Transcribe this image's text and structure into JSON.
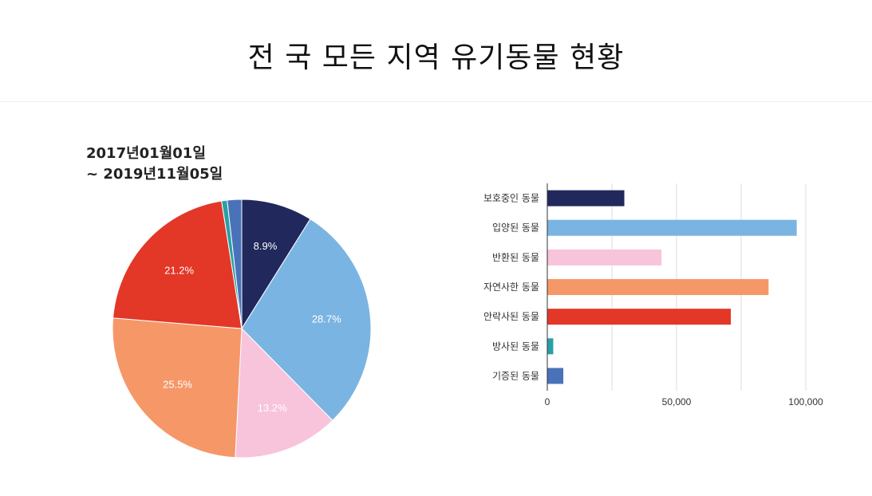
{
  "page": {
    "title": "전 국 모든 지역 유기동물 현황",
    "date_from": "2017년01월01일",
    "date_to": "~ 2019년11월05일"
  },
  "chart_data": [
    {
      "type": "pie",
      "labels": [
        "보호중인 동물",
        "입양된 동물",
        "반환된 동물",
        "자연사한 동물",
        "안락사된 동물",
        "방사된 동물",
        "기증된 동물"
      ],
      "values": [
        8.9,
        28.7,
        13.2,
        25.5,
        21.2,
        0.7,
        1.8
      ],
      "display_labels": [
        "8.9%",
        "28.7%",
        "13.2%",
        "25.5%",
        "21.2%",
        "",
        ""
      ],
      "colors": [
        "#20285c",
        "#7ab4e2",
        "#f7c4dc",
        "#f69768",
        "#e33728",
        "#2aa0a6",
        "#4a72b8"
      ]
    },
    {
      "type": "bar",
      "orientation": "horizontal",
      "categories": [
        "보호중인 동물",
        "입양된 동물",
        "반환된 동물",
        "자연사한 동물",
        "안락사된 동물",
        "방사된 동물",
        "기증된 동물"
      ],
      "values": [
        29800,
        96500,
        44200,
        85600,
        71000,
        2300,
        6200
      ],
      "colors": [
        "#20285c",
        "#7ab4e2",
        "#f7c4dc",
        "#f69768",
        "#e33728",
        "#2aa0a6",
        "#4a72b8"
      ],
      "xlim": [
        0,
        100000
      ],
      "xticks": [
        "0",
        "50,000",
        "100,000"
      ],
      "grid": true
    }
  ]
}
